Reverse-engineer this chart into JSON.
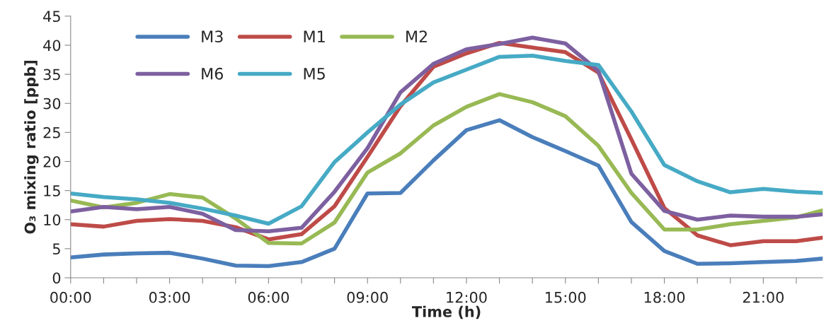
{
  "chart_data": {
    "type": "line",
    "xlabel": "Time (h)",
    "ylabel": "O₃ mixing ratio [ppb]",
    "x": [
      0,
      1,
      2,
      3,
      4,
      5,
      6,
      7,
      8,
      9,
      10,
      11,
      12,
      13,
      14,
      15,
      16,
      17,
      18,
      19,
      20,
      21,
      22,
      22.8
    ],
    "xlim": [
      0,
      22.8
    ],
    "xticks": [
      {
        "value": 0,
        "label": "00:00"
      },
      {
        "value": 1,
        "label": null
      },
      {
        "value": 2,
        "label": null
      },
      {
        "value": 3,
        "label": "03:00"
      },
      {
        "value": 4,
        "label": null
      },
      {
        "value": 5,
        "label": null
      },
      {
        "value": 6,
        "label": "06:00"
      },
      {
        "value": 7,
        "label": null
      },
      {
        "value": 8,
        "label": null
      },
      {
        "value": 9,
        "label": "09:00"
      },
      {
        "value": 10,
        "label": null
      },
      {
        "value": 11,
        "label": null
      },
      {
        "value": 12,
        "label": "12:00"
      },
      {
        "value": 13,
        "label": null
      },
      {
        "value": 14,
        "label": null
      },
      {
        "value": 15,
        "label": "15:00"
      },
      {
        "value": 16,
        "label": null
      },
      {
        "value": 17,
        "label": null
      },
      {
        "value": 18,
        "label": "18:00"
      },
      {
        "value": 19,
        "label": null
      },
      {
        "value": 20,
        "label": null
      },
      {
        "value": 21,
        "label": "21:00"
      },
      {
        "value": 22,
        "label": null
      }
    ],
    "ylim": [
      0,
      45
    ],
    "yticks": [
      0,
      5,
      10,
      15,
      20,
      25,
      30,
      35,
      40,
      45
    ],
    "grid": false,
    "legend": "top left",
    "marker": "none",
    "line_style": "solid",
    "series": [
      {
        "name": "M3",
        "color": "#4a7ebb",
        "values": [
          3.5,
          4.0,
          4.2,
          4.3,
          3.3,
          2.1,
          2.0,
          2.7,
          5.0,
          14.5,
          14.6,
          20.2,
          25.4,
          27.1,
          24.2,
          21.8,
          19.3,
          9.6,
          4.6,
          2.4,
          2.5,
          2.7,
          2.9,
          3.3
        ]
      },
      {
        "name": "M1",
        "color": "#be4b48",
        "values": [
          9.2,
          8.8,
          9.8,
          10.1,
          9.8,
          8.7,
          6.6,
          7.5,
          12.3,
          20.8,
          29.5,
          36.3,
          38.6,
          40.4,
          39.6,
          38.8,
          35.3,
          23.8,
          12.0,
          7.3,
          5.6,
          6.3,
          6.3,
          6.9
        ]
      },
      {
        "name": "M2",
        "color": "#98b954",
        "values": [
          13.3,
          12.1,
          12.9,
          14.4,
          13.8,
          10.2,
          6.0,
          5.9,
          9.5,
          18.1,
          21.4,
          26.2,
          29.4,
          31.6,
          30.2,
          27.8,
          22.7,
          14.6,
          8.3,
          8.3,
          9.2,
          9.8,
          10.4,
          11.6
        ]
      },
      {
        "name": "M6",
        "color": "#7d60a0",
        "values": [
          11.4,
          12.2,
          11.8,
          12.2,
          11.0,
          8.2,
          8.0,
          8.6,
          14.8,
          22.3,
          31.9,
          36.8,
          39.3,
          40.2,
          41.3,
          40.3,
          35.6,
          17.9,
          11.5,
          10.0,
          10.7,
          10.5,
          10.5,
          10.9
        ]
      },
      {
        "name": "M5",
        "color": "#46aac5",
        "values": [
          14.5,
          13.9,
          13.5,
          12.9,
          11.9,
          10.7,
          9.3,
          12.3,
          19.9,
          25.0,
          29.8,
          33.6,
          35.8,
          38.0,
          38.2,
          37.3,
          36.6,
          28.6,
          19.4,
          16.6,
          14.7,
          15.3,
          14.8,
          14.6
        ]
      }
    ]
  }
}
